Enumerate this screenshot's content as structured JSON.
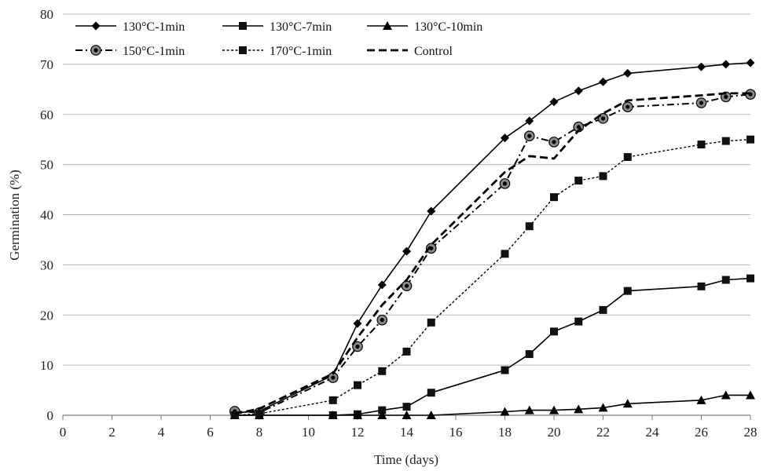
{
  "chart_data": {
    "type": "line",
    "xlabel": "Time (days)",
    "ylabel": "Germination (%)",
    "xlim": [
      0,
      28
    ],
    "ylim": [
      0,
      80
    ],
    "xticks": [
      "0",
      "2",
      "4",
      "6",
      "8",
      "10",
      "12",
      "14",
      "16",
      "18",
      "20",
      "22",
      "24",
      "26",
      "28"
    ],
    "yticks": [
      "0",
      "10",
      "20",
      "30",
      "40",
      "50",
      "60",
      "70",
      "80"
    ],
    "grid": "horizontal",
    "legend_position": "top-left",
    "series": [
      {
        "name": "130°C-1min",
        "line": "solid",
        "marker": "diamond",
        "x": [
          7,
          8,
          11,
          12,
          13,
          14,
          15,
          18,
          19,
          20,
          21,
          22,
          23,
          26,
          27,
          28
        ],
        "y": [
          0.5,
          0.8,
          8.0,
          18.3,
          26.0,
          32.7,
          40.7,
          55.3,
          58.7,
          62.5,
          64.7,
          66.5,
          68.2,
          69.5,
          70.0,
          70.3
        ]
      },
      {
        "name": "130°C-7min",
        "line": "solid",
        "marker": "square",
        "x": [
          7,
          8,
          11,
          12,
          13,
          14,
          15,
          18,
          19,
          20,
          21,
          22,
          23,
          26,
          27,
          28
        ],
        "y": [
          0,
          0,
          0,
          0.2,
          1.0,
          1.7,
          4.5,
          9.0,
          12.2,
          16.7,
          18.7,
          21.0,
          24.8,
          25.7,
          27.0,
          27.3
        ]
      },
      {
        "name": "130°C-10min",
        "line": "solid",
        "marker": "triangle",
        "x": [
          7,
          8,
          11,
          12,
          13,
          14,
          15,
          18,
          19,
          20,
          21,
          22,
          23,
          26,
          27,
          28
        ],
        "y": [
          0,
          0,
          0,
          0,
          0,
          0,
          0,
          0.7,
          1.0,
          1.0,
          1.2,
          1.5,
          2.3,
          3.0,
          4.0,
          4.0
        ]
      },
      {
        "name": "150°C-1min",
        "line": "dash-dot",
        "marker": "circle",
        "x": [
          7,
          8,
          11,
          12,
          13,
          14,
          15,
          18,
          19,
          20,
          21,
          22,
          23,
          26,
          27,
          28
        ],
        "y": [
          0.8,
          0.5,
          7.5,
          13.7,
          19.0,
          25.8,
          33.3,
          46.2,
          55.7,
          54.5,
          57.5,
          59.2,
          61.5,
          62.3,
          63.5,
          64.0
        ]
      },
      {
        "name": "170°C-1min",
        "line": "dotted",
        "marker": "square",
        "x": [
          7,
          8,
          11,
          12,
          13,
          14,
          15,
          18,
          19,
          20,
          21,
          22,
          23,
          26,
          27,
          28
        ],
        "y": [
          0,
          0.3,
          3.0,
          6.0,
          8.8,
          12.7,
          18.5,
          32.2,
          37.7,
          43.5,
          46.8,
          47.7,
          51.5,
          54.0,
          54.7,
          55.0
        ]
      },
      {
        "name": "Control",
        "line": "dashed",
        "marker": "none",
        "x": [
          7,
          8,
          11,
          12,
          13,
          14,
          15,
          18,
          19,
          20,
          21,
          22,
          23,
          26,
          27,
          28
        ],
        "y": [
          0.3,
          1.3,
          8.3,
          15.5,
          22.0,
          27.0,
          34.0,
          48.5,
          51.7,
          51.2,
          56.8,
          60.2,
          62.8,
          63.8,
          64.2,
          64.2
        ]
      }
    ]
  }
}
